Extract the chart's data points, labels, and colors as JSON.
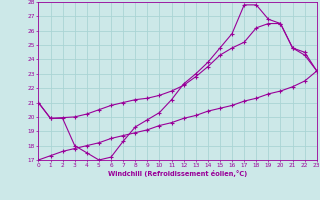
{
  "xlabel": "Windchill (Refroidissement éolien,°C)",
  "background_color": "#cce8e8",
  "grid_color": "#aad4d4",
  "line_color": "#990099",
  "xmin": 0,
  "xmax": 23,
  "ymin": 17,
  "ymax": 28,
  "line1_x": [
    0,
    1,
    2,
    3,
    4,
    5,
    6,
    7,
    8,
    9,
    10,
    11,
    12,
    13,
    14,
    15,
    16,
    17,
    18,
    19,
    20,
    21,
    22,
    23
  ],
  "line1_y": [
    21.0,
    19.9,
    19.9,
    18.0,
    17.5,
    17.0,
    17.2,
    18.3,
    19.3,
    19.8,
    20.3,
    21.2,
    22.3,
    23.0,
    23.8,
    24.8,
    25.8,
    27.8,
    27.8,
    26.8,
    26.5,
    24.8,
    24.3,
    23.2
  ],
  "line2_x": [
    0,
    1,
    3,
    4,
    5,
    6,
    7,
    8,
    9,
    10,
    11,
    12,
    13,
    14,
    15,
    16,
    17,
    18,
    19,
    20,
    21,
    22,
    23
  ],
  "line2_y": [
    21.0,
    19.9,
    20.0,
    20.2,
    20.5,
    20.8,
    21.0,
    21.2,
    21.3,
    21.5,
    21.8,
    22.2,
    22.8,
    23.5,
    24.3,
    24.8,
    25.2,
    26.2,
    26.5,
    26.5,
    24.8,
    24.5,
    23.2
  ],
  "line3_x": [
    0,
    1,
    2,
    3,
    4,
    5,
    6,
    7,
    8,
    9,
    10,
    11,
    12,
    13,
    14,
    15,
    16,
    17,
    18,
    19,
    20,
    21,
    22,
    23
  ],
  "line3_y": [
    17.0,
    17.3,
    17.6,
    17.8,
    18.0,
    18.2,
    18.5,
    18.7,
    18.9,
    19.1,
    19.4,
    19.6,
    19.9,
    20.1,
    20.4,
    20.6,
    20.8,
    21.1,
    21.3,
    21.6,
    21.8,
    22.1,
    22.5,
    23.2
  ],
  "yticks": [
    17,
    18,
    19,
    20,
    21,
    22,
    23,
    24,
    25,
    26,
    27,
    28
  ],
  "xticks": [
    0,
    1,
    2,
    3,
    4,
    5,
    6,
    7,
    8,
    9,
    10,
    11,
    12,
    13,
    14,
    15,
    16,
    17,
    18,
    19,
    20,
    21,
    22,
    23
  ]
}
